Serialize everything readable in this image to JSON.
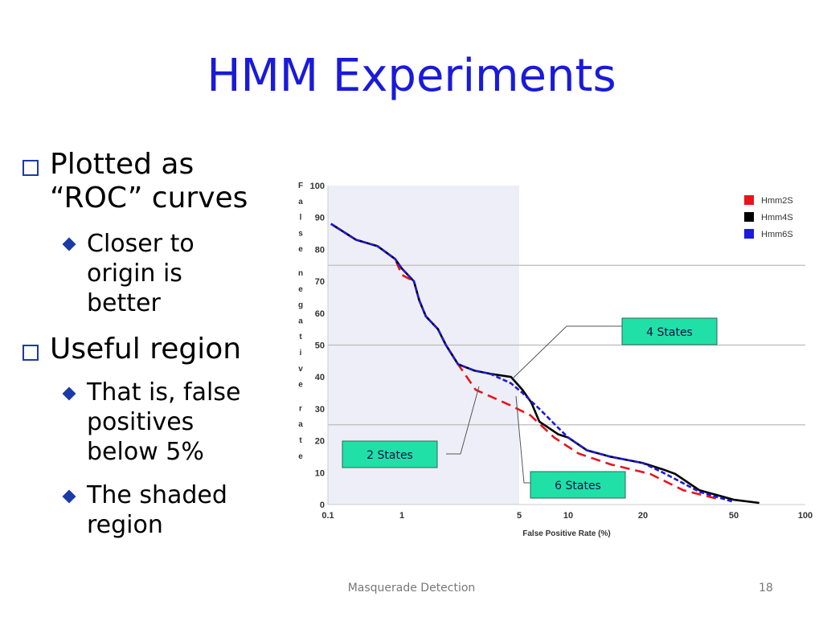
{
  "slide": {
    "title": "HMM Experiments",
    "footer": "Masquerade Detection",
    "page_number": "18",
    "bullets": [
      {
        "text": "Plotted as “ROC” curves",
        "lines": [
          "Plotted as",
          "“ROC” curves"
        ],
        "sub": [
          {
            "lines": [
              "Closer to",
              "origin is",
              "better"
            ]
          }
        ]
      },
      {
        "lines": [
          "Useful region"
        ],
        "sub": [
          {
            "lines": [
              "That is, false",
              "positives",
              "below 5%"
            ]
          },
          {
            "lines": [
              "The shaded",
              "region"
            ]
          }
        ]
      }
    ]
  },
  "chart_data": {
    "type": "line",
    "xlabel": "False Positive Rate (%)",
    "ylabel": "False negative rate",
    "x_ticks": [
      "0.1",
      "1",
      "5",
      "10",
      "20",
      "50",
      "100"
    ],
    "y_ticks": [
      "0",
      "10",
      "20",
      "30",
      "40",
      "50",
      "60",
      "70",
      "80",
      "90",
      "100"
    ],
    "xlim": [
      0.1,
      100
    ],
    "ylim": [
      0,
      100
    ],
    "grid_y": [
      25,
      50,
      75
    ],
    "shaded_region": {
      "x": [
        0.1,
        5
      ],
      "color": "#eeeef8"
    },
    "legend": {
      "position": "top-right"
    },
    "annotations": [
      {
        "text": "4 States",
        "target": [
          4.47,
          40
        ]
      },
      {
        "text": "2 States",
        "target": [
          3.2,
          37
        ]
      },
      {
        "text": "6 States",
        "target": [
          4.6,
          34
        ]
      }
    ],
    "series": [
      {
        "name": "Hmm2S",
        "color": "#e8141a",
        "style": "dashed",
        "points": [
          [
            0.11,
            88
          ],
          [
            0.24,
            83
          ],
          [
            0.47,
            81
          ],
          [
            0.81,
            77
          ],
          [
            1,
            72
          ],
          [
            1.18,
            70
          ],
          [
            1.27,
            64
          ],
          [
            1.39,
            59
          ],
          [
            1.64,
            55
          ],
          [
            1.83,
            50
          ],
          [
            2.16,
            44
          ],
          [
            2.75,
            36
          ],
          [
            4.47,
            31
          ],
          [
            5.85,
            28
          ],
          [
            8.2,
            21
          ],
          [
            11,
            16
          ],
          [
            14.8,
            12.6
          ],
          [
            21.5,
            9.6
          ],
          [
            30,
            4.5
          ],
          [
            44,
            1.5
          ]
        ]
      },
      {
        "name": "Hmm4S",
        "color": "#000000",
        "style": "solid",
        "points": [
          [
            0.11,
            88
          ],
          [
            0.24,
            83
          ],
          [
            0.47,
            81
          ],
          [
            0.81,
            77
          ],
          [
            1,
            74
          ],
          [
            1.18,
            70
          ],
          [
            1.27,
            64
          ],
          [
            1.39,
            59
          ],
          [
            1.64,
            55
          ],
          [
            1.83,
            50
          ],
          [
            2.16,
            44
          ],
          [
            2.7,
            42
          ],
          [
            3.36,
            41
          ],
          [
            4.47,
            40
          ],
          [
            5.23,
            36
          ],
          [
            5.93,
            32
          ],
          [
            6.65,
            26
          ],
          [
            8.7,
            22
          ],
          [
            10,
            21
          ],
          [
            11.9,
            17
          ],
          [
            14.8,
            15
          ],
          [
            20,
            13
          ],
          [
            24.5,
            11
          ],
          [
            27.7,
            9.6
          ],
          [
            35.3,
            4.5
          ],
          [
            50,
            1.5
          ],
          [
            64,
            0.5
          ]
        ]
      },
      {
        "name": "Hmm6S",
        "color": "#1a1ae0",
        "style": "dashed",
        "points": [
          [
            0.11,
            88
          ],
          [
            0.24,
            83
          ],
          [
            0.47,
            81
          ],
          [
            0.81,
            77
          ],
          [
            1,
            74
          ],
          [
            1.18,
            70
          ],
          [
            1.27,
            64
          ],
          [
            1.39,
            59
          ],
          [
            1.64,
            55
          ],
          [
            1.83,
            50
          ],
          [
            2.16,
            44
          ],
          [
            2.7,
            42
          ],
          [
            3.36,
            41
          ],
          [
            4.47,
            38
          ],
          [
            5.23,
            35
          ],
          [
            6.65,
            30
          ],
          [
            8.7,
            24
          ],
          [
            10,
            21
          ],
          [
            11.9,
            17
          ],
          [
            14.8,
            15
          ],
          [
            20,
            13
          ],
          [
            24.5,
            10
          ],
          [
            27.7,
            8
          ],
          [
            35.3,
            4
          ],
          [
            50,
            0.8
          ]
        ]
      }
    ]
  }
}
